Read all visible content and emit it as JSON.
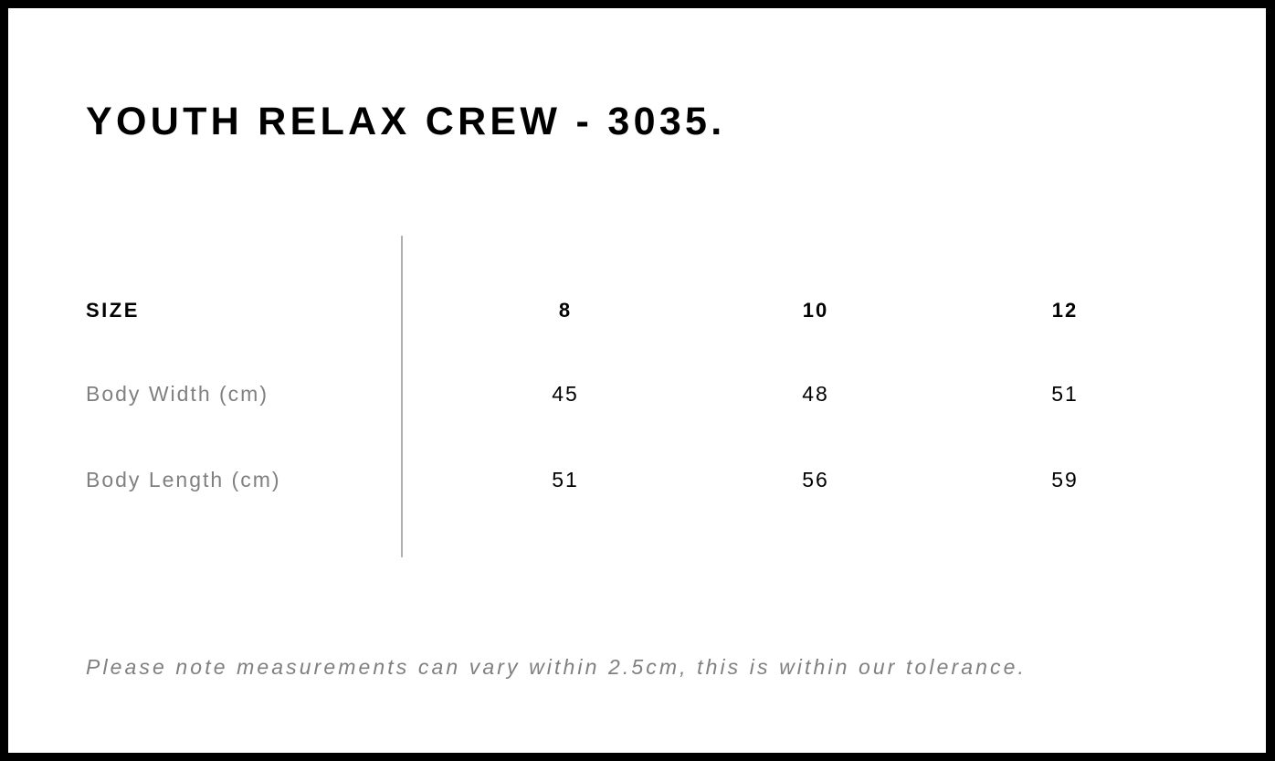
{
  "title": "YOUTH RELAX CREW - 3035.",
  "table": {
    "header": {
      "label": "SIZE",
      "values": [
        "8",
        "10",
        "12"
      ]
    },
    "rows": [
      {
        "label": "Body Width (cm)",
        "values": [
          "45",
          "48",
          "51"
        ]
      },
      {
        "label": "Body Length (cm)",
        "values": [
          "51",
          "56",
          "59"
        ]
      }
    ]
  },
  "note": "Please note measurements can vary within 2.5cm, this is within our tolerance."
}
